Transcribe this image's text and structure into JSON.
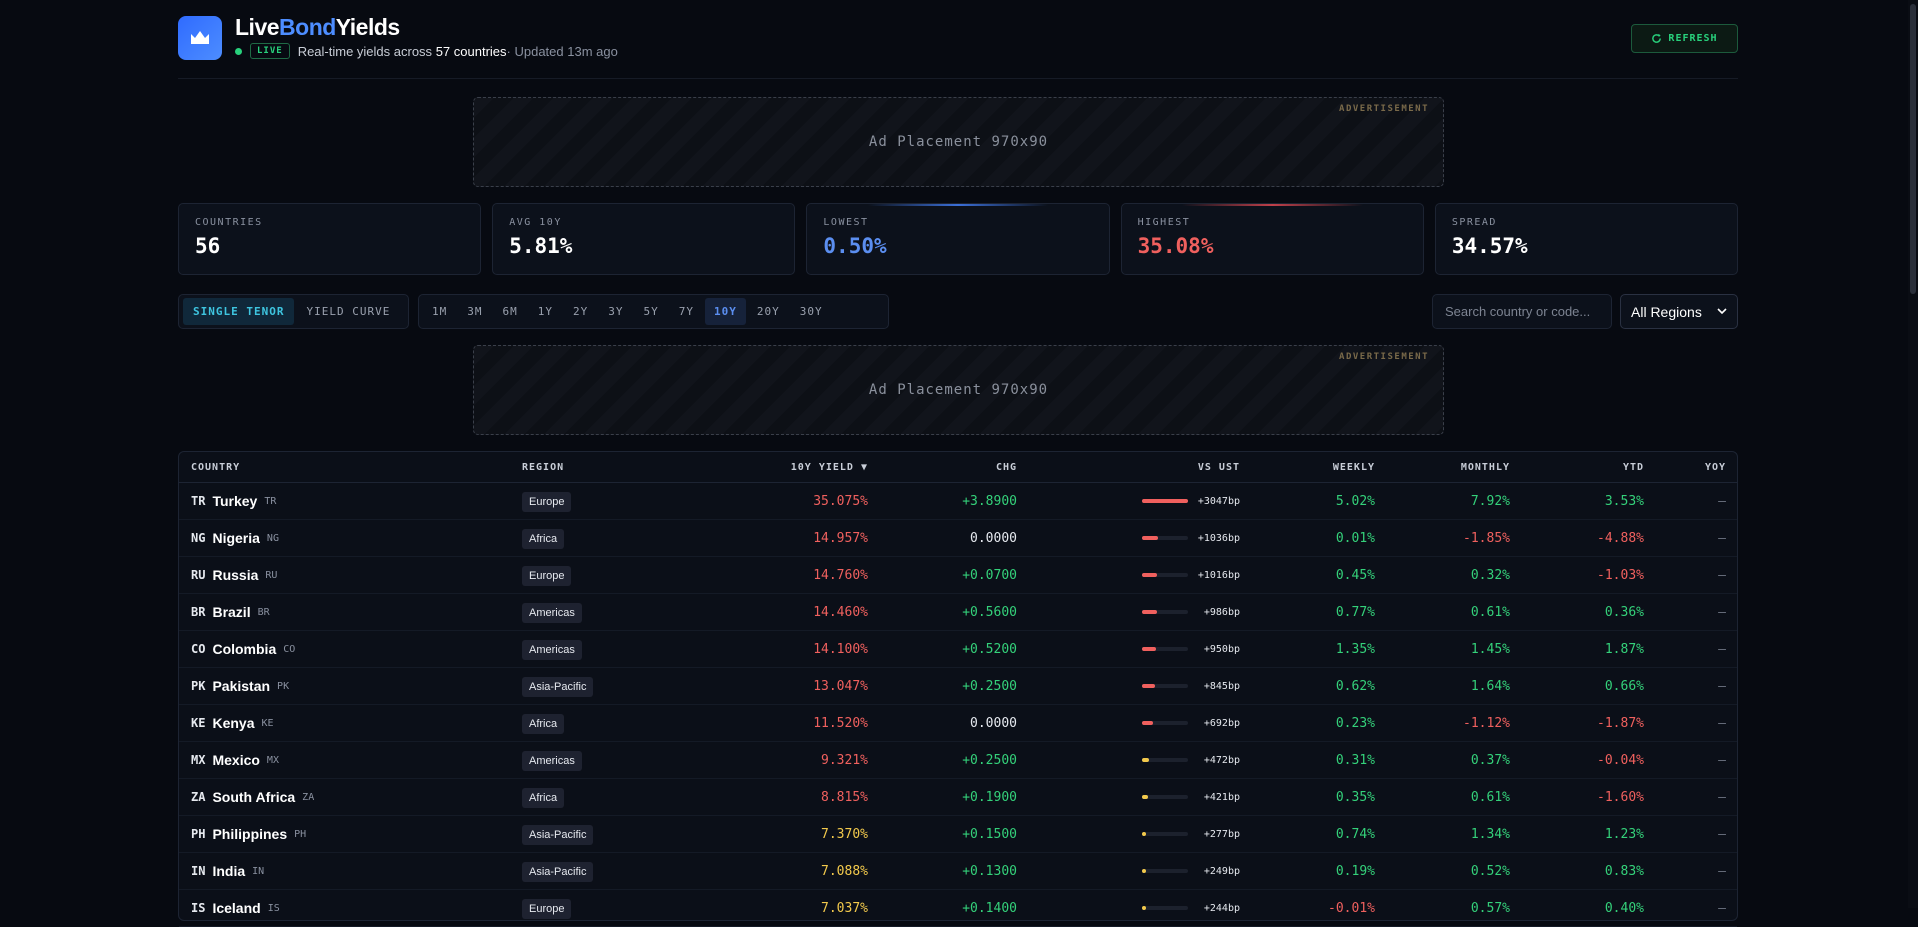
{
  "header": {
    "title_a": "Live",
    "title_b": "Bond",
    "title_c": "Yields",
    "live_badge": "LIVE",
    "sub_prefix": "Real-time yields across",
    "sub_count": "57",
    "sub_unit": "countries",
    "sub_updated": "· Updated 13m ago",
    "refresh_label": "REFRESH"
  },
  "ads": {
    "label": "ADVERTISEMENT",
    "text": "Ad Placement 970x90"
  },
  "stats": [
    {
      "label": "COUNTRIES",
      "value": "56",
      "color": "#ffffff"
    },
    {
      "label": "AVG 10Y",
      "value": "5.81%",
      "color": "#ffffff"
    },
    {
      "label": "LOWEST",
      "value": "0.50%",
      "color": "#5b8ef0"
    },
    {
      "label": "HIGHEST",
      "value": "35.08%",
      "color": "#f0605e"
    },
    {
      "label": "SPREAD",
      "value": "34.57%",
      "color": "#ffffff"
    }
  ],
  "view_toggle": [
    "SINGLE TENOR",
    "YIELD CURVE"
  ],
  "tenors": [
    "1M",
    "3M",
    "6M",
    "1Y",
    "2Y",
    "3Y",
    "5Y",
    "7Y",
    "10Y",
    "20Y",
    "30Y"
  ],
  "active_tenor": "10Y",
  "search": {
    "placeholder": "Search country or code..."
  },
  "region_filter": {
    "selected": "All Regions"
  },
  "table": {
    "columns": {
      "country": "COUNTRY",
      "region": "REGION",
      "yield": "10Y YIELD ▼",
      "chg": "CHG",
      "vs_ust": "VS UST",
      "weekly": "WEEKLY",
      "monthly": "MONTHLY",
      "ytd": "YTD",
      "yoy": "YOY"
    },
    "rows": [
      {
        "flag": "TR",
        "name": "Turkey",
        "code": "TR",
        "region": "Europe",
        "yield": "35.075%",
        "chg": "+3.8900",
        "vs": "+3047bp",
        "vs_frac": 1.0,
        "weekly": "5.02%",
        "monthly": "7.92%",
        "ytd": "3.53%",
        "yoy": "—"
      },
      {
        "flag": "NG",
        "name": "Nigeria",
        "code": "NG",
        "region": "Africa",
        "yield": "14.957%",
        "chg": "0.0000",
        "vs": "+1036bp",
        "vs_frac": 0.34,
        "weekly": "0.01%",
        "monthly": "-1.85%",
        "ytd": "-4.88%",
        "yoy": "—"
      },
      {
        "flag": "RU",
        "name": "Russia",
        "code": "RU",
        "region": "Europe",
        "yield": "14.760%",
        "chg": "+0.0700",
        "vs": "+1016bp",
        "vs_frac": 0.33,
        "weekly": "0.45%",
        "monthly": "0.32%",
        "ytd": "-1.03%",
        "yoy": "—"
      },
      {
        "flag": "BR",
        "name": "Brazil",
        "code": "BR",
        "region": "Americas",
        "yield": "14.460%",
        "chg": "+0.5600",
        "vs": "+986bp",
        "vs_frac": 0.32,
        "weekly": "0.77%",
        "monthly": "0.61%",
        "ytd": "0.36%",
        "yoy": "—"
      },
      {
        "flag": "CO",
        "name": "Colombia",
        "code": "CO",
        "region": "Americas",
        "yield": "14.100%",
        "chg": "+0.5200",
        "vs": "+950bp",
        "vs_frac": 0.31,
        "weekly": "1.35%",
        "monthly": "1.45%",
        "ytd": "1.87%",
        "yoy": "—"
      },
      {
        "flag": "PK",
        "name": "Pakistan",
        "code": "PK",
        "region": "Asia-Pacific",
        "yield": "13.047%",
        "chg": "+0.2500",
        "vs": "+845bp",
        "vs_frac": 0.28,
        "weekly": "0.62%",
        "monthly": "1.64%",
        "ytd": "0.66%",
        "yoy": "—"
      },
      {
        "flag": "KE",
        "name": "Kenya",
        "code": "KE",
        "region": "Africa",
        "yield": "11.520%",
        "chg": "0.0000",
        "vs": "+692bp",
        "vs_frac": 0.23,
        "weekly": "0.23%",
        "monthly": "-1.12%",
        "ytd": "-1.87%",
        "yoy": "—"
      },
      {
        "flag": "MX",
        "name": "Mexico",
        "code": "MX",
        "region": "Americas",
        "yield": "9.321%",
        "chg": "+0.2500",
        "vs": "+472bp",
        "vs_frac": 0.155,
        "weekly": "0.31%",
        "monthly": "0.37%",
        "ytd": "-0.04%",
        "yoy": "—"
      },
      {
        "flag": "ZA",
        "name": "South Africa",
        "code": "ZA",
        "region": "Africa",
        "yield": "8.815%",
        "chg": "+0.1900",
        "vs": "+421bp",
        "vs_frac": 0.14,
        "weekly": "0.35%",
        "monthly": "0.61%",
        "ytd": "-1.60%",
        "yoy": "—"
      },
      {
        "flag": "PH",
        "name": "Philippines",
        "code": "PH",
        "region": "Asia-Pacific",
        "yield": "7.370%",
        "chg": "+0.1500",
        "vs": "+277bp",
        "vs_frac": 0.09,
        "weekly": "0.74%",
        "monthly": "1.34%",
        "ytd": "1.23%",
        "yoy": "—"
      },
      {
        "flag": "IN",
        "name": "India",
        "code": "IN",
        "region": "Asia-Pacific",
        "yield": "7.088%",
        "chg": "+0.1300",
        "vs": "+249bp",
        "vs_frac": 0.08,
        "weekly": "0.19%",
        "monthly": "0.52%",
        "ytd": "0.83%",
        "yoy": "—"
      },
      {
        "flag": "IS",
        "name": "Iceland",
        "code": "IS",
        "region": "Europe",
        "yield": "7.037%",
        "chg": "+0.1400",
        "vs": "+244bp",
        "vs_frac": 0.08,
        "weekly": "-0.01%",
        "monthly": "0.57%",
        "ytd": "0.40%",
        "yoy": "—"
      }
    ]
  }
}
